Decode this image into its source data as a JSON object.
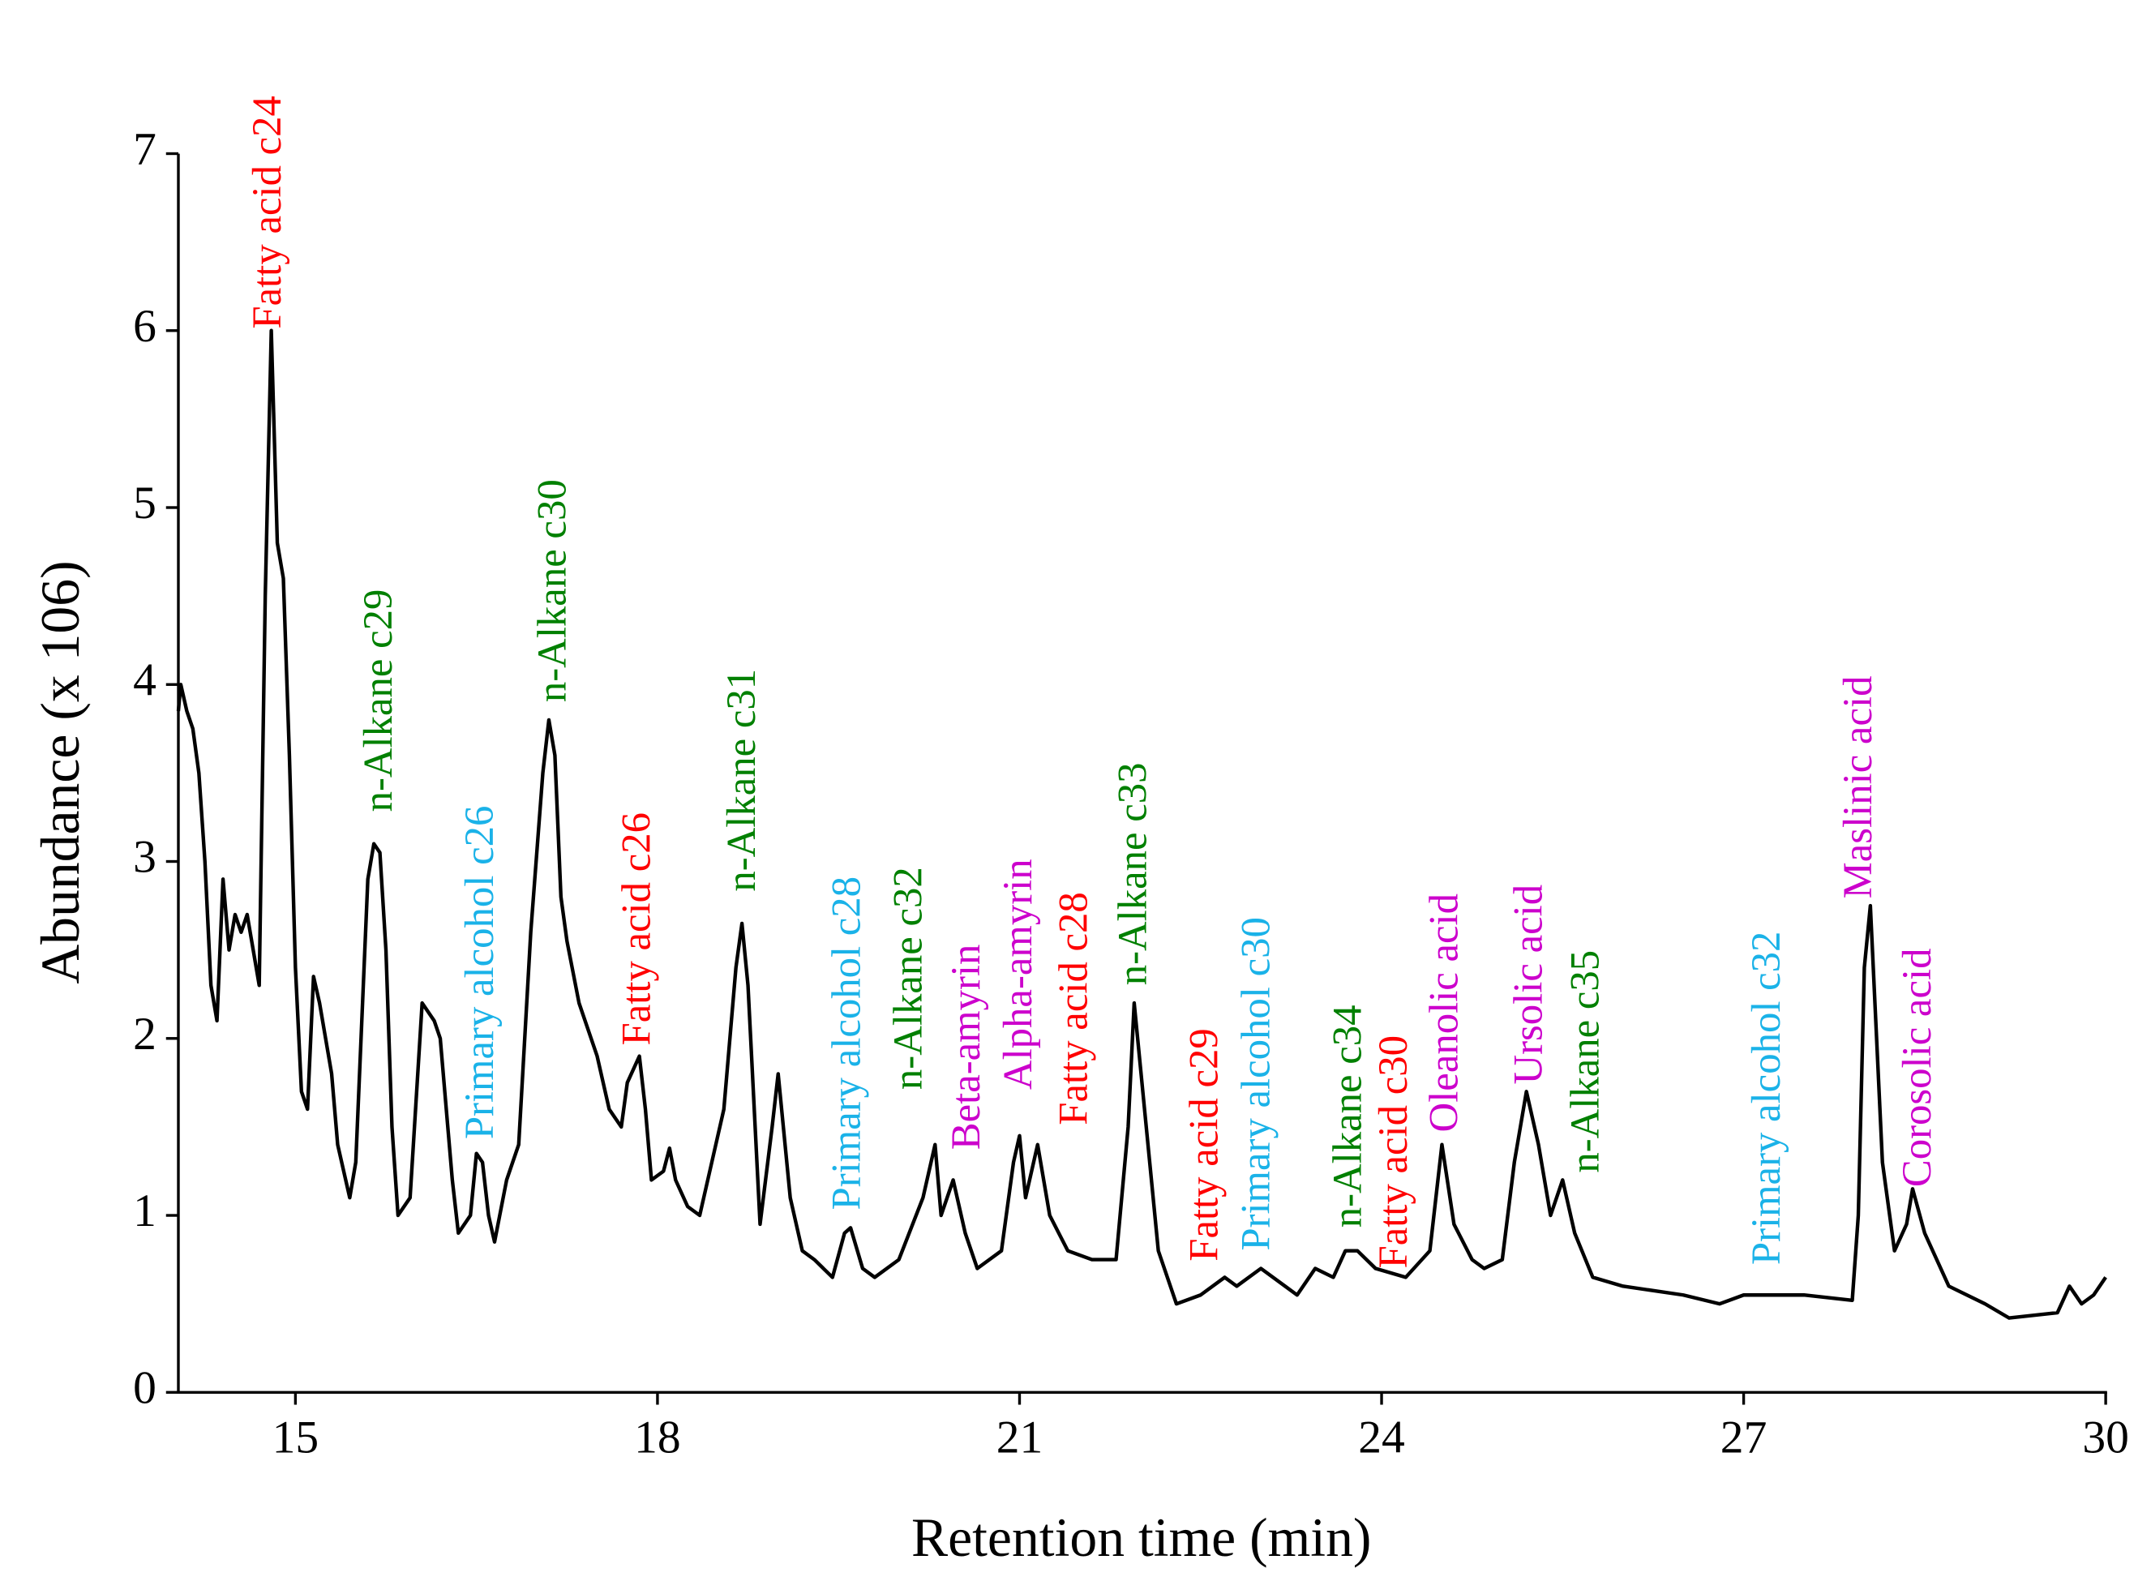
{
  "chart_data": {
    "type": "line",
    "xlabel": "Retention time (min)",
    "ylabel": "Abundance (x 106)",
    "xlim": [
      14.03,
      30
    ],
    "xticks": [
      15,
      18,
      21,
      24,
      27,
      30
    ],
    "ylim": [
      0,
      7
    ],
    "yticks": [
      0,
      1,
      2,
      3,
      4,
      5,
      6,
      7
    ],
    "color": "#000000",
    "x": [
      14.03,
      14.05,
      14.1,
      14.15,
      14.2,
      14.25,
      14.3,
      14.35,
      14.4,
      14.45,
      14.5,
      14.55,
      14.6,
      14.65,
      14.7,
      14.75,
      14.8,
      14.85,
      14.9,
      14.95,
      15.0,
      15.05,
      15.1,
      15.15,
      15.2,
      15.25,
      15.3,
      15.35,
      15.45,
      15.5,
      15.6,
      15.65,
      15.7,
      15.75,
      15.8,
      15.85,
      15.95,
      16.05,
      16.15,
      16.2,
      16.3,
      16.35,
      16.45,
      16.5,
      16.55,
      16.6,
      16.65,
      16.75,
      16.85,
      16.95,
      17.05,
      17.1,
      17.15,
      17.2,
      17.25,
      17.35,
      17.5,
      17.6,
      17.7,
      17.75,
      17.85,
      17.9,
      17.95,
      18.05,
      18.1,
      18.15,
      18.25,
      18.35,
      18.45,
      18.55,
      18.65,
      18.7,
      18.75,
      18.85,
      18.95,
      19.0,
      19.1,
      19.2,
      19.3,
      19.45,
      19.55,
      19.6,
      19.7,
      19.8,
      20.0,
      20.2,
      20.3,
      20.35,
      20.45,
      20.55,
      20.65,
      20.85,
      20.95,
      21.0,
      21.05,
      21.15,
      21.25,
      21.4,
      21.6,
      21.8,
      21.9,
      21.95,
      22.05,
      22.15,
      22.3,
      22.5,
      22.7,
      22.8,
      23.0,
      23.2,
      23.3,
      23.45,
      23.6,
      23.7,
      23.8,
      23.95,
      24.2,
      24.4,
      24.5,
      24.6,
      24.75,
      24.85,
      25.0,
      25.1,
      25.2,
      25.3,
      25.4,
      25.5,
      25.6,
      25.75,
      26.0,
      26.5,
      26.8,
      27.0,
      27.5,
      27.9,
      27.95,
      28.0,
      28.05,
      28.15,
      28.25,
      28.35,
      28.4,
      28.5,
      28.7,
      29.0,
      29.2,
      29.6,
      29.7,
      29.8,
      29.9,
      30.0
    ],
    "values": [
      3.85,
      4.0,
      3.85,
      3.75,
      3.5,
      3.0,
      2.3,
      2.1,
      2.9,
      2.5,
      2.7,
      2.6,
      2.7,
      2.5,
      2.3,
      4.5,
      6.0,
      4.8,
      4.6,
      3.6,
      2.4,
      1.7,
      1.6,
      2.35,
      2.2,
      2.0,
      1.8,
      1.4,
      1.1,
      1.3,
      2.9,
      3.1,
      3.05,
      2.5,
      1.5,
      1.0,
      1.1,
      2.2,
      2.1,
      2.0,
      1.2,
      0.9,
      1.0,
      1.35,
      1.3,
      1.0,
      0.85,
      1.2,
      1.4,
      2.6,
      3.5,
      3.8,
      3.6,
      2.8,
      2.55,
      2.2,
      1.9,
      1.6,
      1.5,
      1.75,
      1.9,
      1.6,
      1.2,
      1.25,
      1.38,
      1.2,
      1.05,
      1.0,
      1.3,
      1.6,
      2.4,
      2.65,
      2.3,
      0.95,
      1.5,
      1.8,
      1.1,
      0.8,
      0.75,
      0.65,
      0.9,
      0.93,
      0.7,
      0.65,
      0.75,
      1.1,
      1.4,
      1.0,
      1.2,
      0.9,
      0.7,
      0.8,
      1.3,
      1.45,
      1.1,
      1.4,
      1.0,
      0.8,
      0.75,
      0.75,
      1.5,
      2.2,
      1.5,
      0.8,
      0.5,
      0.55,
      0.65,
      0.6,
      0.7,
      0.6,
      0.55,
      0.7,
      0.65,
      0.8,
      0.8,
      0.7,
      0.65,
      0.8,
      1.4,
      0.95,
      0.75,
      0.7,
      0.75,
      1.3,
      1.7,
      1.4,
      1.0,
      1.2,
      0.9,
      0.65,
      0.6,
      0.55,
      0.5,
      0.55,
      0.55,
      0.52,
      1.0,
      2.4,
      2.75,
      1.3,
      0.8,
      0.95,
      1.15,
      0.9,
      0.6,
      0.5,
      0.42,
      0.45,
      0.6,
      0.5,
      0.55,
      0.65
    ],
    "annotations": [
      {
        "text": "Fatty acid c24",
        "x": 14.8,
        "y": 6.01,
        "color": "#ff0000"
      },
      {
        "text": "n-Alkane c29",
        "x": 15.72,
        "y": 3.28,
        "color": "#008000"
      },
      {
        "text": "Primary alcohol c26",
        "x": 16.56,
        "y": 1.43,
        "color": "#1ab2e8"
      },
      {
        "text": "n-Alkane c30",
        "x": 17.16,
        "y": 3.9,
        "color": "#008000"
      },
      {
        "text": "Fatty acid c26",
        "x": 17.86,
        "y": 1.96,
        "color": "#ff0000"
      },
      {
        "text": "n-Alkane c31",
        "x": 18.73,
        "y": 2.83,
        "color": "#008000"
      },
      {
        "text": "Primary alcohol c28",
        "x": 19.6,
        "y": 1.03,
        "color": "#1ab2e8"
      },
      {
        "text": "n-Alkane c32",
        "x": 20.11,
        "y": 1.71,
        "color": "#008000"
      },
      {
        "text": "Beta-amyrin",
        "x": 20.59,
        "y": 1.37,
        "color": "#cc00cc"
      },
      {
        "text": "Alpha-amyrin",
        "x": 21.02,
        "y": 1.71,
        "color": "#cc00cc"
      },
      {
        "text": "Fatty acid c28",
        "x": 21.48,
        "y": 1.51,
        "color": "#ff0000"
      },
      {
        "text": "n-Alkane c33",
        "x": 21.97,
        "y": 2.3,
        "color": "#008000"
      },
      {
        "text": "Fatty acid c29",
        "x": 22.56,
        "y": 0.74,
        "color": "#ff0000"
      },
      {
        "text": "Primary alcohol c30",
        "x": 22.99,
        "y": 0.8,
        "color": "#1ab2e8"
      },
      {
        "text": "n-Alkane c34",
        "x": 23.75,
        "y": 0.93,
        "color": "#008000"
      },
      {
        "text": "Fatty acid c30",
        "x": 24.13,
        "y": 0.7,
        "color": "#ff0000"
      },
      {
        "text": "Oleanolic acid",
        "x": 24.55,
        "y": 1.47,
        "color": "#cc00cc"
      },
      {
        "text": "Ursolic acid",
        "x": 25.25,
        "y": 1.74,
        "color": "#cc00cc"
      },
      {
        "text": "n-Alkane c35",
        "x": 25.72,
        "y": 1.24,
        "color": "#008000"
      },
      {
        "text": "Primary alcohol c32",
        "x": 27.22,
        "y": 0.72,
        "color": "#1ab2e8"
      },
      {
        "text": "Maslinic acid",
        "x": 27.98,
        "y": 2.79,
        "color": "#cc00cc"
      },
      {
        "text": "Corosolic acid",
        "x": 28.47,
        "y": 1.16,
        "color": "#cc00cc"
      }
    ]
  }
}
